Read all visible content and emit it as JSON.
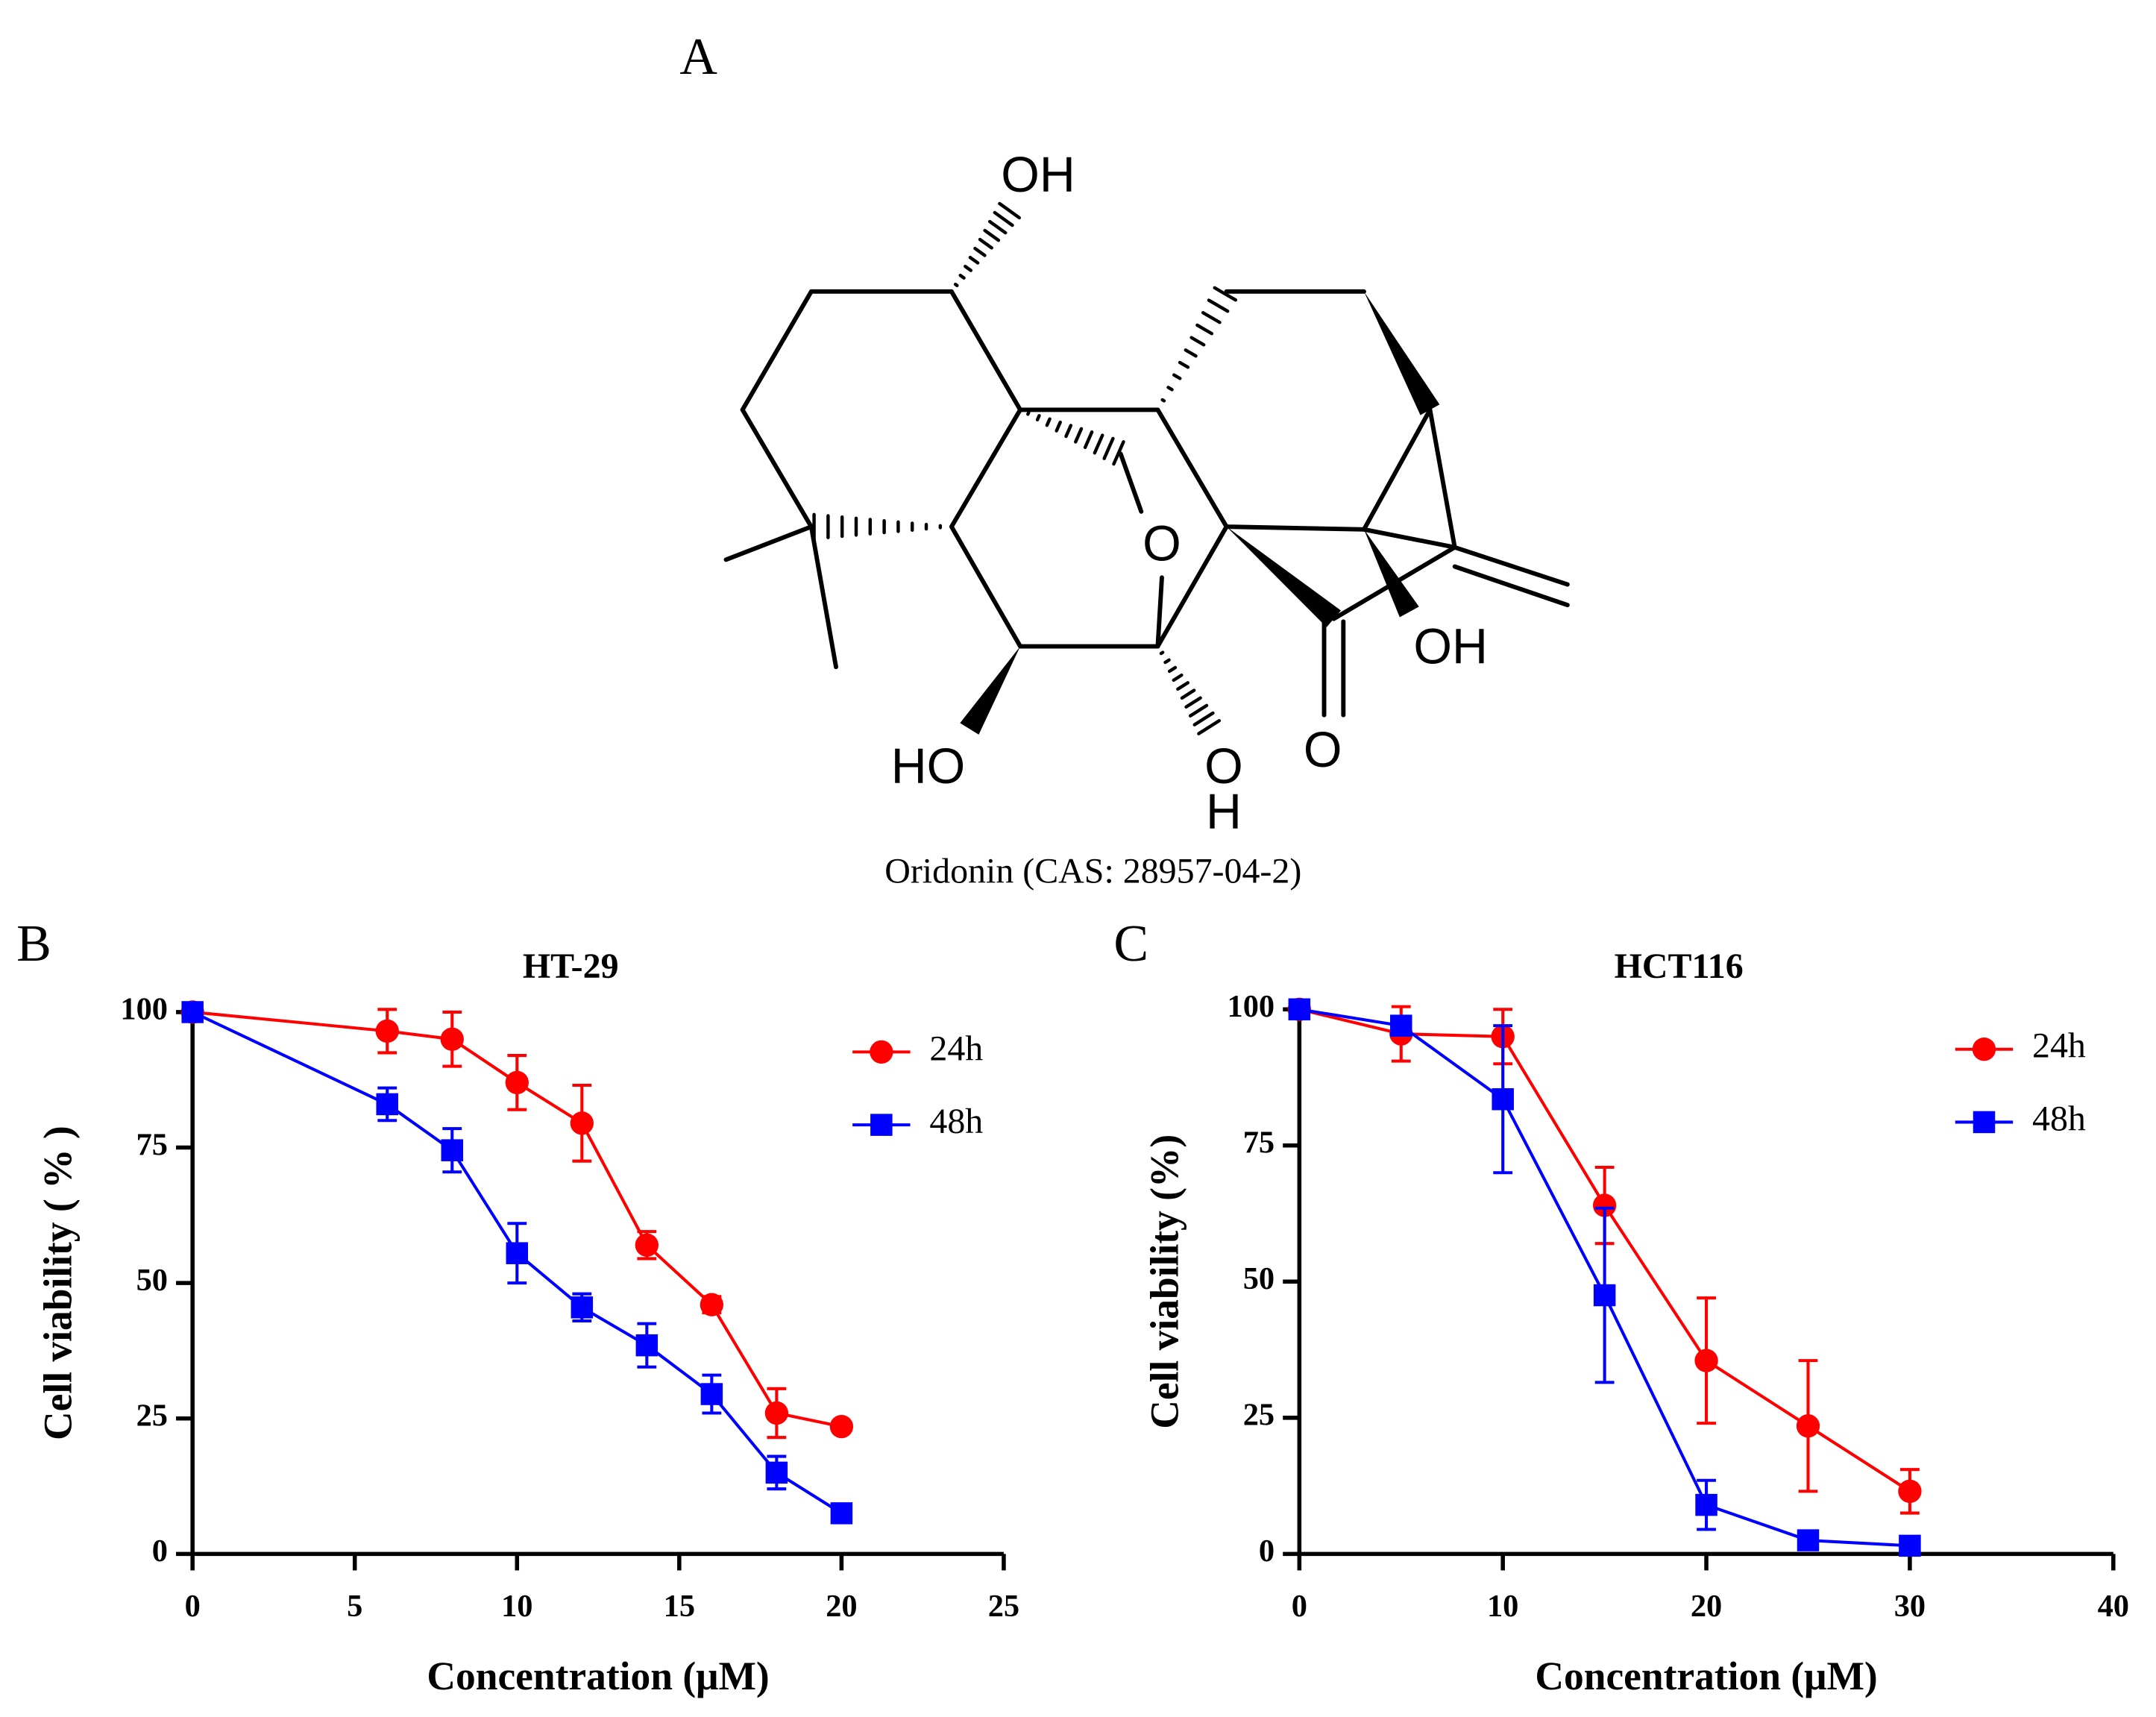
{
  "figure": {
    "panel_labels": [
      "A",
      "B",
      "C"
    ],
    "molecule": {
      "caption": "Oridonin (CAS: 28957-04-2)",
      "atom_labels": [
        "OH",
        "O",
        "OH",
        "HO",
        "O",
        "H",
        "O"
      ]
    }
  },
  "chart_data": [
    {
      "type": "line",
      "title": "HT-29",
      "xlabel": "Concentration (μM)",
      "ylabel": "Cell viability ( % )",
      "x": [
        0,
        6,
        8,
        10,
        12,
        14,
        16,
        18,
        20
      ],
      "xlim": [
        0,
        25
      ],
      "xticks": [
        0,
        5,
        10,
        15,
        20,
        25
      ],
      "ylim": [
        0,
        100
      ],
      "yticks": [
        0,
        25,
        50,
        75,
        100
      ],
      "legend": "upper right",
      "series": [
        {
          "name": "24h",
          "color": "#ff0000",
          "marker": "circle",
          "values": [
            100,
            96.5,
            95,
            87,
            79.5,
            57,
            46,
            26,
            23.5
          ],
          "errors": [
            0,
            4,
            5,
            5,
            7,
            2.5,
            1.5,
            4.5,
            0
          ]
        },
        {
          "name": "48h",
          "color": "#0000ff",
          "marker": "square",
          "values": [
            100,
            83,
            74.5,
            55.5,
            45.5,
            38.5,
            29.5,
            15,
            7.5
          ],
          "errors": [
            0,
            3,
            4,
            5.5,
            2.5,
            4,
            3.5,
            3,
            1.5
          ]
        }
      ]
    },
    {
      "type": "line",
      "title": "HCT116",
      "xlabel": "Concentration (μM)",
      "ylabel": "Cell viability (%)",
      "x": [
        0,
        5,
        10,
        15,
        20,
        25,
        30
      ],
      "xlim": [
        0,
        40
      ],
      "xticks": [
        0,
        10,
        20,
        30,
        40
      ],
      "ylim": [
        0,
        100
      ],
      "yticks": [
        0,
        25,
        50,
        75,
        100
      ],
      "legend": "upper right",
      "series": [
        {
          "name": "24h",
          "color": "#ff0000",
          "marker": "circle",
          "values": [
            100,
            95.5,
            95,
            64,
            35.5,
            23.5,
            11.5
          ],
          "errors": [
            0,
            5,
            5,
            7,
            11.5,
            12,
            4
          ]
        },
        {
          "name": "48h",
          "color": "#0000ff",
          "marker": "square",
          "values": [
            100,
            97,
            83.5,
            47.5,
            9,
            2.5,
            1.5
          ],
          "errors": [
            0,
            0,
            13.5,
            16,
            4.5,
            1,
            0
          ]
        }
      ]
    }
  ]
}
